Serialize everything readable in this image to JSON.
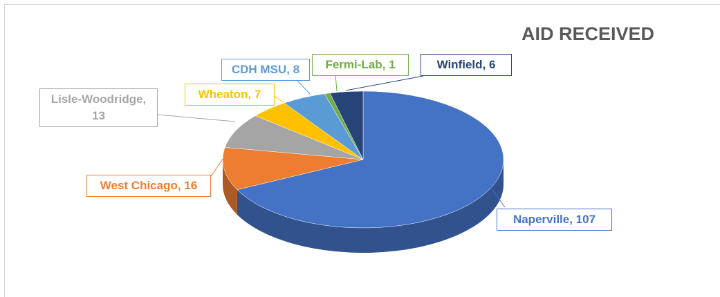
{
  "chart_data": {
    "type": "pie",
    "title": "AID RECEIVED",
    "categories": [
      "Naperville",
      "West Chicago",
      "Lisle-Woodridge",
      "Wheaton",
      "CDH MSU",
      "Fermi-Lab",
      "Winfield"
    ],
    "values": [
      107,
      16,
      13,
      7,
      8,
      1,
      6
    ],
    "value_labels": [
      "Naperville, 107",
      "West Chicago, 16",
      "Lisle-Woodridge, 13",
      "Wheaton, 7",
      "CDH MSU, 8",
      "Fermi-Lab, 1",
      "Winfield, 6"
    ],
    "colors": [
      "#4472c4",
      "#ed7d31",
      "#a5a5a5",
      "#ffc000",
      "#5b9bd5",
      "#70ad47",
      "#264478"
    ]
  }
}
